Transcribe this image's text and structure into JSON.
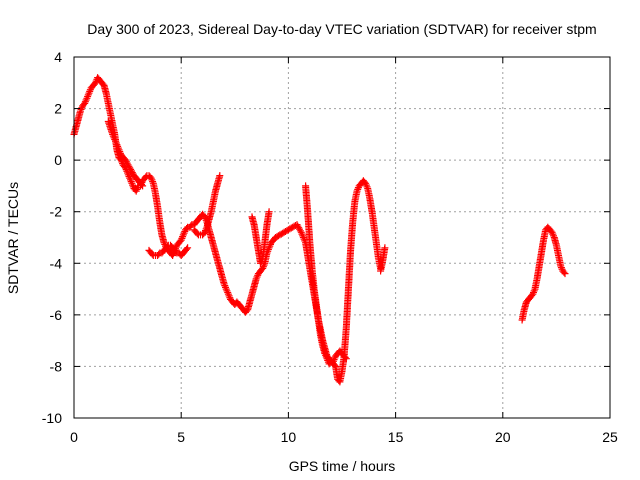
{
  "chart_data": {
    "type": "scatter",
    "title": "Day 300 of 2023, Sidereal Day-to-day VTEC variation (SDTVAR) for receiver stpm",
    "xlabel": "GPS time / hours",
    "ylabel": "SDTVAR / TECUs",
    "xlim": [
      0,
      25
    ],
    "ylim": [
      -10,
      4
    ],
    "xticks": [
      0,
      5,
      10,
      15,
      20,
      25
    ],
    "yticks": [
      -10,
      -8,
      -6,
      -4,
      -2,
      0,
      2,
      4
    ],
    "xtick_labels": [
      "0",
      "5",
      "10",
      "15",
      "20",
      "25"
    ],
    "ytick_labels": [
      "-10",
      "-8",
      "-6",
      "-4",
      "-2",
      "0",
      "2",
      "4"
    ],
    "grid": true,
    "marker": "+",
    "marker_color": "#ff0000",
    "series": [
      {
        "name": "segment-1",
        "x": [
          0.0,
          0.1,
          0.2,
          0.3,
          0.4,
          0.5,
          0.6,
          0.7,
          0.8,
          0.9,
          1.0,
          1.1,
          1.2,
          1.3,
          1.4,
          1.5,
          1.6,
          1.7,
          1.8,
          1.9,
          2.0,
          2.1,
          2.2,
          2.3,
          2.4,
          2.5,
          2.6,
          2.7,
          2.8,
          2.9,
          3.0,
          3.1,
          3.2,
          3.3,
          3.4,
          3.5,
          3.6,
          3.7,
          3.8,
          3.9,
          4.0,
          4.1,
          4.2,
          4.3,
          4.4,
          4.5,
          4.6,
          4.7,
          4.8,
          4.9,
          5.0,
          5.1,
          5.2,
          5.3,
          5.4,
          5.5,
          5.6,
          5.7,
          5.8,
          5.9,
          6.0,
          6.1,
          6.2,
          6.3,
          6.4,
          6.5,
          6.6,
          6.7,
          6.8,
          6.9,
          7.0,
          7.1,
          7.2,
          7.3,
          7.4,
          7.5,
          7.6,
          7.7,
          7.8,
          7.9,
          8.0,
          8.1,
          8.2,
          8.3,
          8.4,
          8.5,
          8.6,
          8.7,
          8.8,
          8.9,
          9.0,
          9.2,
          9.4,
          9.6,
          9.8,
          10.0,
          10.2,
          10.4,
          10.6,
          10.8,
          11.0,
          11.2,
          11.4,
          11.6,
          11.8,
          12.0,
          12.1,
          12.2,
          12.3,
          12.4,
          12.5,
          12.6,
          12.7,
          12.8,
          12.9,
          13.0,
          13.1,
          13.2,
          13.3,
          13.4,
          13.5,
          13.6,
          13.7,
          13.8,
          13.9,
          14.0,
          14.1,
          14.2,
          14.3
        ],
        "y": [
          1.0,
          1.3,
          1.6,
          1.9,
          2.1,
          2.2,
          2.4,
          2.6,
          2.8,
          2.9,
          3.0,
          3.2,
          3.1,
          3.0,
          2.9,
          2.6,
          2.2,
          1.8,
          1.4,
          1.0,
          0.4,
          0.1,
          0.0,
          -0.2,
          -0.3,
          -0.5,
          -0.7,
          -0.9,
          -1.1,
          -1.2,
          -1.0,
          -1.0,
          -0.8,
          -0.7,
          -0.6,
          -0.6,
          -0.7,
          -0.9,
          -1.3,
          -1.8,
          -2.4,
          -2.9,
          -3.2,
          -3.4,
          -3.5,
          -3.6,
          -3.7,
          -3.5,
          -3.3,
          -3.2,
          -3.1,
          -2.9,
          -2.7,
          -2.6,
          -2.6,
          -2.5,
          -2.5,
          -2.4,
          -2.3,
          -2.2,
          -2.1,
          -2.2,
          -2.4,
          -2.7,
          -3.0,
          -3.3,
          -3.6,
          -3.9,
          -4.2,
          -4.5,
          -4.8,
          -5.0,
          -5.2,
          -5.4,
          -5.5,
          -5.6,
          -5.5,
          -5.6,
          -5.7,
          -5.8,
          -5.9,
          -5.8,
          -5.5,
          -5.2,
          -4.9,
          -4.6,
          -4.4,
          -4.3,
          -4.2,
          -4.0,
          -3.6,
          -3.2,
          -3.0,
          -2.9,
          -2.8,
          -2.7,
          -2.6,
          -2.5,
          -2.8,
          -3.2,
          -4.2,
          -5.2,
          -6.2,
          -7.0,
          -7.6,
          -7.8,
          -7.9,
          -8.0,
          -8.5,
          -8.6,
          -8.2,
          -7.6,
          -6.5,
          -5.0,
          -3.5,
          -2.4,
          -1.6,
          -1.2,
          -1.0,
          -0.9,
          -0.8,
          -0.9,
          -1.1,
          -1.5,
          -2.0,
          -2.6,
          -3.2,
          -3.8,
          -4.2
        ]
      },
      {
        "name": "segment-2",
        "x": [
          1.6,
          1.8,
          2.0,
          2.2,
          2.4,
          2.6,
          2.8,
          3.0,
          3.2
        ],
        "y": [
          1.5,
          1.0,
          0.6,
          0.2,
          0.0,
          -0.3,
          -0.6,
          -0.8,
          -1.0
        ]
      },
      {
        "name": "segment-3",
        "x": [
          3.5,
          3.6,
          3.7,
          3.8,
          3.9,
          4.0,
          4.1,
          4.2,
          4.3,
          4.4,
          4.5,
          4.6,
          4.7,
          4.8,
          4.9,
          5.0,
          5.1,
          5.2,
          5.3
        ],
        "y": [
          -3.5,
          -3.6,
          -3.7,
          -3.7,
          -3.7,
          -3.6,
          -3.6,
          -3.5,
          -3.4,
          -3.3,
          -3.3,
          -3.4,
          -3.5,
          -3.6,
          -3.6,
          -3.7,
          -3.6,
          -3.5,
          -3.4
        ]
      },
      {
        "name": "segment-4",
        "x": [
          5.6,
          5.7,
          5.8,
          5.9,
          6.0,
          6.1,
          6.2,
          6.3,
          6.4,
          6.5,
          6.6,
          6.7,
          6.8
        ],
        "y": [
          -2.7,
          -2.8,
          -2.9,
          -2.9,
          -2.9,
          -2.8,
          -2.6,
          -2.3,
          -2.0,
          -1.6,
          -1.2,
          -0.9,
          -0.6
        ]
      },
      {
        "name": "segment-5",
        "x": [
          8.3,
          8.4,
          8.5,
          8.6,
          8.7,
          8.8,
          8.9,
          9.0,
          9.1
        ],
        "y": [
          -2.2,
          -2.5,
          -3.0,
          -3.5,
          -4.0,
          -3.8,
          -3.2,
          -2.5,
          -2.0
        ]
      },
      {
        "name": "segment-6",
        "x": [
          10.8,
          10.9,
          11.0,
          11.1,
          11.2,
          11.3,
          11.4,
          11.5,
          11.6,
          11.7,
          11.8,
          11.9,
          12.0,
          12.1,
          12.2,
          12.3,
          12.4,
          12.5,
          12.6,
          12.7
        ],
        "y": [
          -1.0,
          -2.0,
          -3.2,
          -4.2,
          -5.0,
          -5.6,
          -6.2,
          -6.8,
          -7.2,
          -7.5,
          -7.7,
          -7.9,
          -7.8,
          -7.8,
          -7.6,
          -7.5,
          -7.4,
          -7.5,
          -7.6,
          -7.7
        ]
      },
      {
        "name": "segment-7",
        "x": [
          14.3,
          14.4,
          14.5
        ],
        "y": [
          -4.3,
          -3.9,
          -3.4
        ]
      },
      {
        "name": "segment-8",
        "x": [
          20.9,
          21.0,
          21.1,
          21.2,
          21.3,
          21.4,
          21.5,
          21.6,
          21.7,
          21.8,
          21.9,
          22.0,
          22.1,
          22.2,
          22.3,
          22.4,
          22.5,
          22.6,
          22.7,
          22.8,
          22.9
        ],
        "y": [
          -6.2,
          -5.8,
          -5.5,
          -5.4,
          -5.3,
          -5.2,
          -5.0,
          -4.6,
          -4.1,
          -3.6,
          -3.1,
          -2.7,
          -2.6,
          -2.7,
          -2.8,
          -3.0,
          -3.3,
          -3.7,
          -4.1,
          -4.3,
          -4.4
        ]
      }
    ]
  }
}
